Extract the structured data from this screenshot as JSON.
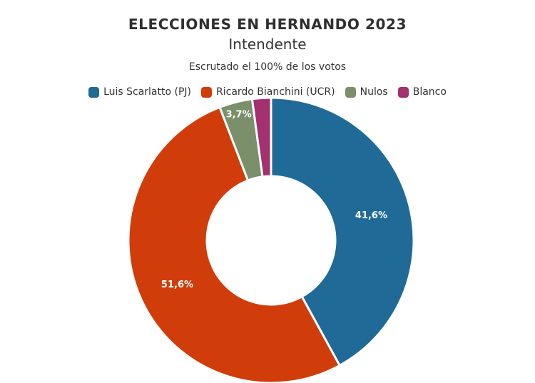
{
  "chart_data": {
    "type": "pie",
    "title": "ELECCIONES EN HERNANDO 2023",
    "subtitle": "Intendente",
    "caption": "Escrutado el 100% de los votos",
    "legend_position": "top",
    "donut": true,
    "series": [
      {
        "name": "Luis Scarlatto (PJ)",
        "value": 41.6,
        "label": "41,6%",
        "color": "#1f6a96"
      },
      {
        "name": "Ricardo Bianchini (UCR)",
        "value": 51.6,
        "label": "51,6%",
        "color": "#d03d0b"
      },
      {
        "name": "Nulos",
        "value": 3.7,
        "label": "3,7%",
        "color": "#7a8f6a"
      },
      {
        "name": "Blanco",
        "value": 2.1,
        "label": "",
        "color": "#a3306f"
      }
    ]
  }
}
